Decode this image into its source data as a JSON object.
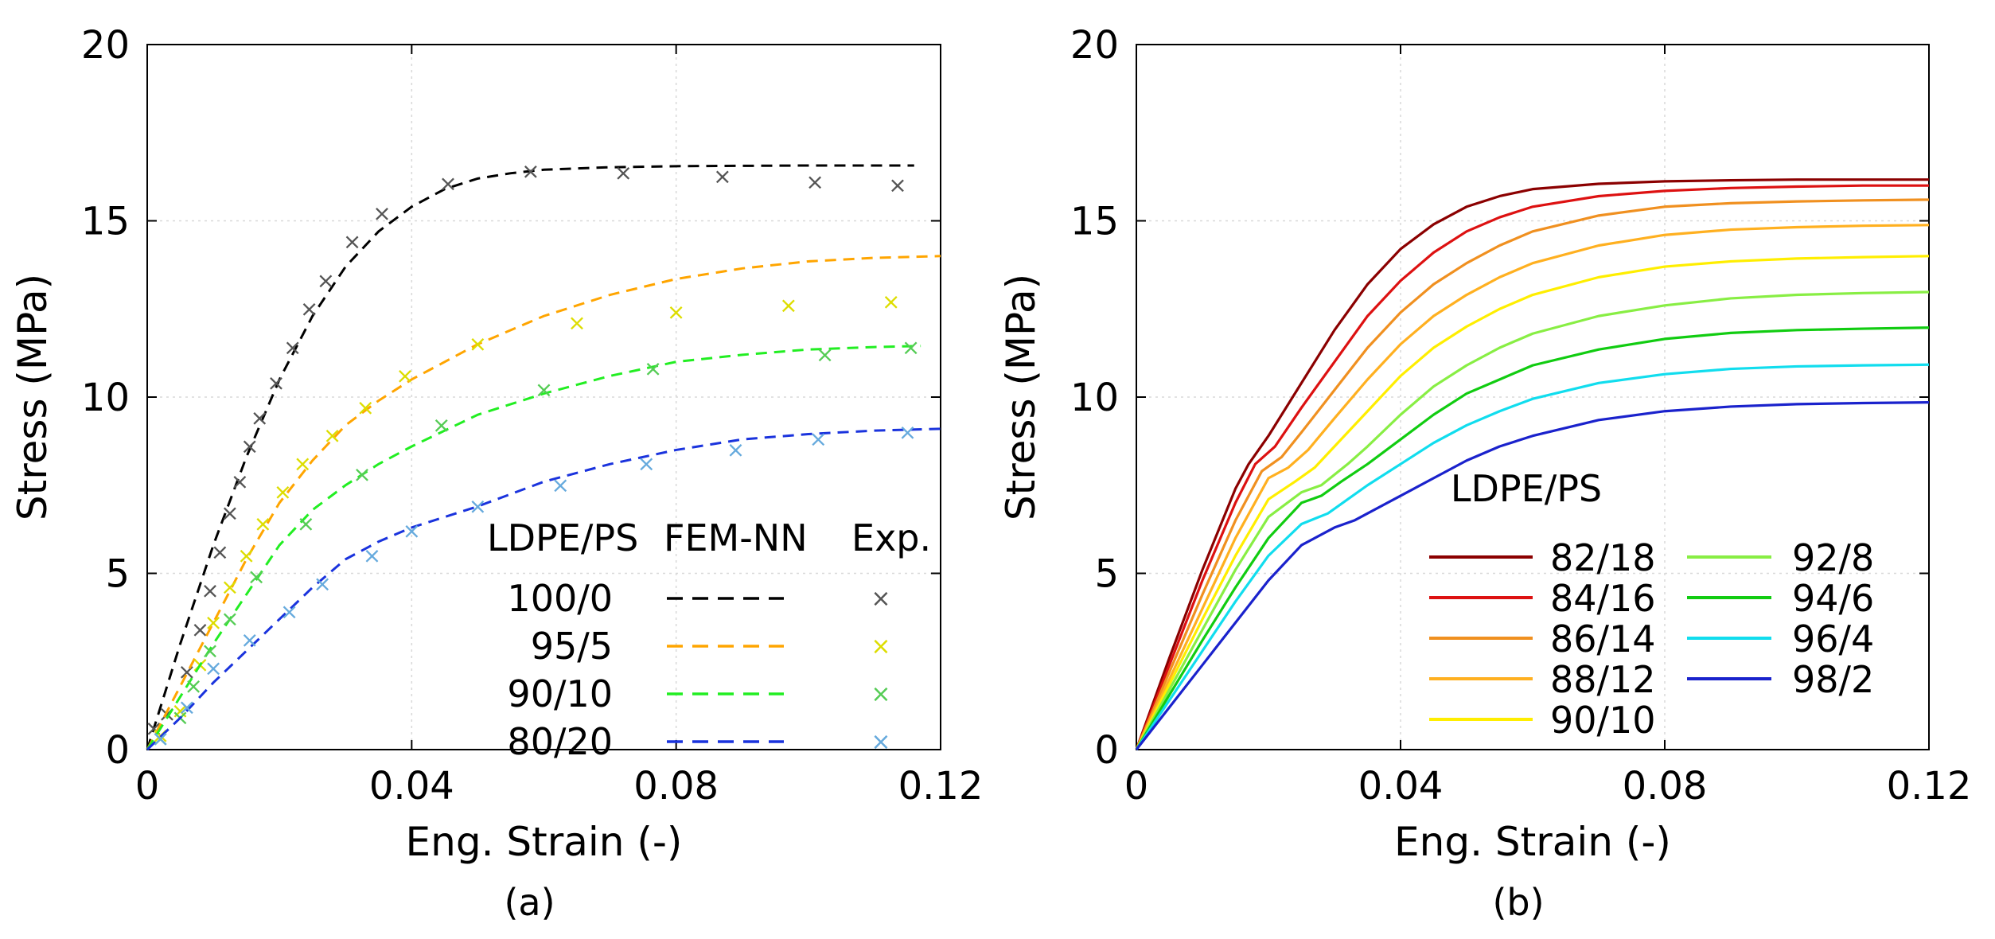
{
  "chart_data": [
    {
      "type": "line",
      "panel": "a",
      "caption": "(a)",
      "xlabel": "Eng. Strain (-)",
      "ylabel": "Stress (MPa)",
      "xlim": [
        0,
        0.12
      ],
      "ylim": [
        0,
        20
      ],
      "xticks": [
        0,
        0.04,
        0.08,
        0.12
      ],
      "xtick_labels": [
        "0",
        "0.04",
        "0.08",
        "0.12"
      ],
      "yticks": [
        0,
        5,
        10,
        15,
        20
      ],
      "ytick_labels": [
        "0",
        "5",
        "10",
        "15",
        "20"
      ],
      "grid": true,
      "legend": {
        "placement": "bottom-right",
        "header_group": "LDPE/PS",
        "header_model": "FEM-NN",
        "header_exp": "Exp.",
        "marker_glyph": "×"
      },
      "series": [
        {
          "name": "100/0",
          "color": "#000000",
          "exp_color": "#555555",
          "model": {
            "x": [
              0,
              0.005,
              0.01,
              0.015,
              0.02,
              0.025,
              0.03,
              0.035,
              0.04,
              0.045,
              0.05,
              0.055,
              0.06,
              0.07,
              0.08,
              0.09,
              0.1,
              0.11,
              0.116
            ],
            "y": [
              0,
              3.0,
              5.8,
              8.3,
              10.5,
              12.3,
              13.7,
              14.7,
              15.4,
              15.9,
              16.2,
              16.35,
              16.45,
              16.52,
              16.55,
              16.56,
              16.57,
              16.57,
              16.57
            ]
          },
          "exp": {
            "x": [
              0.001,
              0.003,
              0.006,
              0.008,
              0.0095,
              0.011,
              0.0125,
              0.014,
              0.0155,
              0.017,
              0.0195,
              0.022,
              0.0245,
              0.027,
              0.031,
              0.0355,
              0.0455,
              0.058,
              0.072,
              0.087,
              0.101,
              0.1135
            ],
            "y": [
              0.6,
              1.0,
              2.2,
              3.4,
              4.5,
              5.6,
              6.7,
              7.6,
              8.6,
              9.4,
              10.4,
              11.4,
              12.5,
              13.3,
              14.4,
              15.2,
              16.05,
              16.4,
              16.35,
              16.25,
              16.1,
              16.0
            ]
          }
        },
        {
          "name": "95/5",
          "color": "#ffa500",
          "exp_color": "#dddd00",
          "model": {
            "x": [
              0,
              0.005,
              0.01,
              0.015,
              0.02,
              0.025,
              0.03,
              0.035,
              0.04,
              0.05,
              0.06,
              0.07,
              0.08,
              0.09,
              0.1,
              0.11,
              0.12
            ],
            "y": [
              0,
              1.8,
              3.6,
              5.4,
              7.0,
              8.2,
              9.2,
              9.9,
              10.5,
              11.5,
              12.3,
              12.9,
              13.35,
              13.65,
              13.85,
              13.95,
              14.0
            ]
          },
          "exp": {
            "x": [
              0.002,
              0.005,
              0.008,
              0.01,
              0.0125,
              0.015,
              0.0175,
              0.0205,
              0.0235,
              0.028,
              0.033,
              0.039,
              0.05,
              0.065,
              0.08,
              0.097,
              0.1125
            ],
            "y": [
              0.4,
              1.1,
              2.4,
              3.6,
              4.6,
              5.5,
              6.4,
              7.3,
              8.1,
              8.9,
              9.7,
              10.6,
              11.5,
              12.1,
              12.4,
              12.6,
              12.7
            ]
          }
        },
        {
          "name": "90/10",
          "color": "#22ee22",
          "exp_color": "#55cc55",
          "model": {
            "x": [
              0,
              0.005,
              0.01,
              0.015,
              0.02,
              0.025,
              0.03,
              0.035,
              0.04,
              0.05,
              0.06,
              0.07,
              0.08,
              0.09,
              0.1,
              0.11,
              0.117
            ],
            "y": [
              0,
              1.5,
              3.0,
              4.4,
              5.8,
              6.8,
              7.5,
              8.1,
              8.6,
              9.5,
              10.1,
              10.6,
              11.0,
              11.2,
              11.35,
              11.42,
              11.45
            ]
          },
          "exp": {
            "x": [
              0.002,
              0.005,
              0.007,
              0.0095,
              0.0125,
              0.0165,
              0.024,
              0.0325,
              0.0445,
              0.06,
              0.0765,
              0.1025,
              0.1155
            ],
            "y": [
              0.3,
              0.9,
              1.8,
              2.8,
              3.7,
              4.9,
              6.4,
              7.8,
              9.2,
              10.2,
              10.8,
              11.2,
              11.4
            ]
          }
        },
        {
          "name": "80/20",
          "color": "#1a33dd",
          "exp_color": "#66aadd",
          "model": {
            "x": [
              0,
              0.005,
              0.01,
              0.015,
              0.02,
              0.025,
              0.03,
              0.035,
              0.04,
              0.05,
              0.06,
              0.07,
              0.08,
              0.09,
              0.1,
              0.11,
              0.12
            ],
            "y": [
              0,
              0.9,
              1.9,
              2.8,
              3.7,
              4.6,
              5.4,
              5.9,
              6.3,
              6.9,
              7.6,
              8.1,
              8.5,
              8.8,
              8.95,
              9.05,
              9.1
            ]
          },
          "exp": {
            "x": [
              0.002,
              0.006,
              0.01,
              0.0155,
              0.0215,
              0.0265,
              0.034,
              0.04,
              0.05,
              0.0625,
              0.0755,
              0.089,
              0.1015,
              0.115
            ],
            "y": [
              0.3,
              1.2,
              2.3,
              3.1,
              3.9,
              4.7,
              5.5,
              6.2,
              6.9,
              7.5,
              8.1,
              8.5,
              8.8,
              9.0
            ]
          }
        }
      ]
    },
    {
      "type": "line",
      "panel": "b",
      "caption": "(b)",
      "xlabel": "Eng. Strain (-)",
      "ylabel": "Stress (MPa)",
      "xlim": [
        0,
        0.12
      ],
      "ylim": [
        0,
        20
      ],
      "xticks": [
        0,
        0.04,
        0.08,
        0.12
      ],
      "xtick_labels": [
        "0",
        "0.04",
        "0.08",
        "0.12"
      ],
      "yticks": [
        0,
        5,
        10,
        15,
        20
      ],
      "ytick_labels": [
        "0",
        "5",
        "10",
        "15",
        "20"
      ],
      "grid": true,
      "legend": {
        "placement": "bottom-right",
        "title": "LDPE/PS"
      },
      "series": [
        {
          "name": "82/18",
          "color": "#8b0000",
          "x": [
            0,
            0.005,
            0.01,
            0.015,
            0.017,
            0.02,
            0.025,
            0.03,
            0.035,
            0.04,
            0.045,
            0.05,
            0.055,
            0.06,
            0.07,
            0.08,
            0.09,
            0.1,
            0.11,
            0.12
          ],
          "y": [
            0,
            2.6,
            5.1,
            7.4,
            8.1,
            8.9,
            10.4,
            11.9,
            13.2,
            14.2,
            14.9,
            15.4,
            15.7,
            15.9,
            16.05,
            16.12,
            16.15,
            16.17,
            16.17,
            16.17
          ]
        },
        {
          "name": "84/16",
          "color": "#dd1111",
          "x": [
            0,
            0.005,
            0.01,
            0.015,
            0.018,
            0.021,
            0.025,
            0.03,
            0.035,
            0.04,
            0.045,
            0.05,
            0.055,
            0.06,
            0.07,
            0.08,
            0.09,
            0.1,
            0.11,
            0.12
          ],
          "y": [
            0,
            2.4,
            4.8,
            7.0,
            8.1,
            8.6,
            9.7,
            11.0,
            12.3,
            13.3,
            14.1,
            14.7,
            15.1,
            15.4,
            15.7,
            15.85,
            15.93,
            15.97,
            16.0,
            16.0
          ]
        },
        {
          "name": "86/14",
          "color": "#f09020",
          "x": [
            0,
            0.005,
            0.01,
            0.015,
            0.019,
            0.022,
            0.025,
            0.03,
            0.035,
            0.04,
            0.045,
            0.05,
            0.055,
            0.06,
            0.07,
            0.08,
            0.09,
            0.1,
            0.11,
            0.12
          ],
          "y": [
            0,
            2.2,
            4.4,
            6.5,
            7.9,
            8.3,
            9.0,
            10.2,
            11.4,
            12.4,
            13.2,
            13.8,
            14.3,
            14.7,
            15.15,
            15.4,
            15.5,
            15.55,
            15.58,
            15.6
          ]
        },
        {
          "name": "88/12",
          "color": "#ffb020",
          "x": [
            0,
            0.005,
            0.01,
            0.015,
            0.02,
            0.023,
            0.026,
            0.03,
            0.035,
            0.04,
            0.045,
            0.05,
            0.055,
            0.06,
            0.07,
            0.08,
            0.09,
            0.1,
            0.11,
            0.12
          ],
          "y": [
            0,
            2.0,
            4.0,
            6.0,
            7.7,
            8.0,
            8.5,
            9.4,
            10.5,
            11.5,
            12.3,
            12.9,
            13.4,
            13.8,
            14.3,
            14.6,
            14.75,
            14.82,
            14.86,
            14.88
          ]
        },
        {
          "name": "90/10",
          "color": "#ffee00",
          "x": [
            0,
            0.005,
            0.01,
            0.015,
            0.02,
            0.024,
            0.027,
            0.03,
            0.035,
            0.04,
            0.045,
            0.05,
            0.055,
            0.06,
            0.07,
            0.08,
            0.09,
            0.1,
            0.11,
            0.12
          ],
          "y": [
            0,
            1.85,
            3.7,
            5.5,
            7.1,
            7.6,
            8.0,
            8.6,
            9.6,
            10.6,
            11.4,
            12.0,
            12.5,
            12.9,
            13.4,
            13.7,
            13.85,
            13.93,
            13.97,
            14.0
          ]
        },
        {
          "name": "92/8",
          "color": "#88ee44",
          "x": [
            0,
            0.005,
            0.01,
            0.015,
            0.02,
            0.025,
            0.028,
            0.032,
            0.035,
            0.04,
            0.045,
            0.05,
            0.055,
            0.06,
            0.07,
            0.08,
            0.09,
            0.1,
            0.11,
            0.12
          ],
          "y": [
            0,
            1.7,
            3.4,
            5.1,
            6.6,
            7.3,
            7.5,
            8.1,
            8.6,
            9.5,
            10.3,
            10.9,
            11.4,
            11.8,
            12.3,
            12.6,
            12.8,
            12.9,
            12.95,
            12.98
          ]
        },
        {
          "name": "94/6",
          "color": "#11cc11",
          "x": [
            0,
            0.005,
            0.01,
            0.015,
            0.02,
            0.025,
            0.028,
            0.031,
            0.035,
            0.04,
            0.045,
            0.05,
            0.055,
            0.06,
            0.07,
            0.08,
            0.09,
            0.1,
            0.11,
            0.12
          ],
          "y": [
            0,
            1.55,
            3.1,
            4.6,
            6.0,
            7.0,
            7.2,
            7.6,
            8.1,
            8.8,
            9.5,
            10.1,
            10.5,
            10.9,
            11.35,
            11.65,
            11.82,
            11.9,
            11.94,
            11.97
          ]
        },
        {
          "name": "96/4",
          "color": "#11ddee",
          "x": [
            0,
            0.005,
            0.01,
            0.015,
            0.02,
            0.025,
            0.029,
            0.032,
            0.035,
            0.04,
            0.045,
            0.05,
            0.055,
            0.06,
            0.07,
            0.08,
            0.09,
            0.1,
            0.11,
            0.12
          ],
          "y": [
            0,
            1.4,
            2.8,
            4.2,
            5.5,
            6.4,
            6.7,
            7.1,
            7.5,
            8.1,
            8.7,
            9.2,
            9.6,
            9.95,
            10.4,
            10.65,
            10.8,
            10.87,
            10.9,
            10.92
          ]
        },
        {
          "name": "98/2",
          "color": "#1a22cc",
          "x": [
            0,
            0.005,
            0.01,
            0.015,
            0.02,
            0.025,
            0.03,
            0.033,
            0.035,
            0.04,
            0.045,
            0.05,
            0.055,
            0.06,
            0.07,
            0.08,
            0.09,
            0.1,
            0.11,
            0.12
          ],
          "y": [
            0,
            1.2,
            2.4,
            3.6,
            4.8,
            5.8,
            6.3,
            6.5,
            6.7,
            7.2,
            7.7,
            8.2,
            8.6,
            8.9,
            9.35,
            9.6,
            9.73,
            9.8,
            9.83,
            9.85
          ]
        }
      ]
    }
  ]
}
